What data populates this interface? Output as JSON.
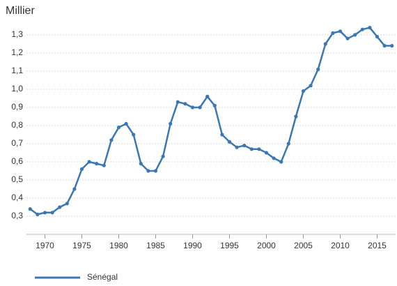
{
  "chart_data": {
    "type": "line",
    "title": "Millier",
    "x": [
      1968,
      1969,
      1970,
      1971,
      1972,
      1973,
      1974,
      1975,
      1976,
      1977,
      1978,
      1979,
      1980,
      1981,
      1982,
      1983,
      1984,
      1985,
      1986,
      1987,
      1988,
      1989,
      1990,
      1991,
      1992,
      1993,
      1994,
      1995,
      1996,
      1997,
      1998,
      1999,
      2000,
      2001,
      2002,
      2003,
      2004,
      2005,
      2006,
      2007,
      2008,
      2009,
      2010,
      2011,
      2012,
      2013,
      2014,
      2015,
      2016,
      2017
    ],
    "series": [
      {
        "name": "Sénégal",
        "color": "#3b77b3",
        "values": [
          0.34,
          0.31,
          0.32,
          0.32,
          0.35,
          0.37,
          0.45,
          0.56,
          0.6,
          0.59,
          0.58,
          0.72,
          0.79,
          0.81,
          0.75,
          0.59,
          0.55,
          0.55,
          0.63,
          0.81,
          0.93,
          0.92,
          0.9,
          0.9,
          0.96,
          0.91,
          0.75,
          0.71,
          0.68,
          0.69,
          0.67,
          0.67,
          0.65,
          0.62,
          0.6,
          0.7,
          0.85,
          0.99,
          1.02,
          1.11,
          1.25,
          1.31,
          1.32,
          1.28,
          1.3,
          1.33,
          1.34,
          1.29,
          1.24,
          1.24
        ]
      }
    ],
    "xlim": [
      1967.5,
      2017.5
    ],
    "xticks": [
      1970,
      1975,
      1980,
      1985,
      1990,
      1995,
      2000,
      2005,
      2010,
      2015
    ],
    "ylim": [
      0.2,
      1.4
    ],
    "yticks": [
      {
        "value": 0.3,
        "label": "0,3"
      },
      {
        "value": 0.4,
        "label": "0,4"
      },
      {
        "value": 0.5,
        "label": "0,5"
      },
      {
        "value": 0.6,
        "label": "0,6"
      },
      {
        "value": 0.7,
        "label": "0,7"
      },
      {
        "value": 0.8,
        "label": "0,8"
      },
      {
        "value": 0.9,
        "label": "0,9"
      },
      {
        "value": 1.0,
        "label": "1,0"
      },
      {
        "value": 1.1,
        "label": "1,1"
      },
      {
        "value": 1.2,
        "label": "1,2"
      },
      {
        "value": 1.3,
        "label": "1,3"
      }
    ],
    "grid": true,
    "legend": "bottom"
  }
}
